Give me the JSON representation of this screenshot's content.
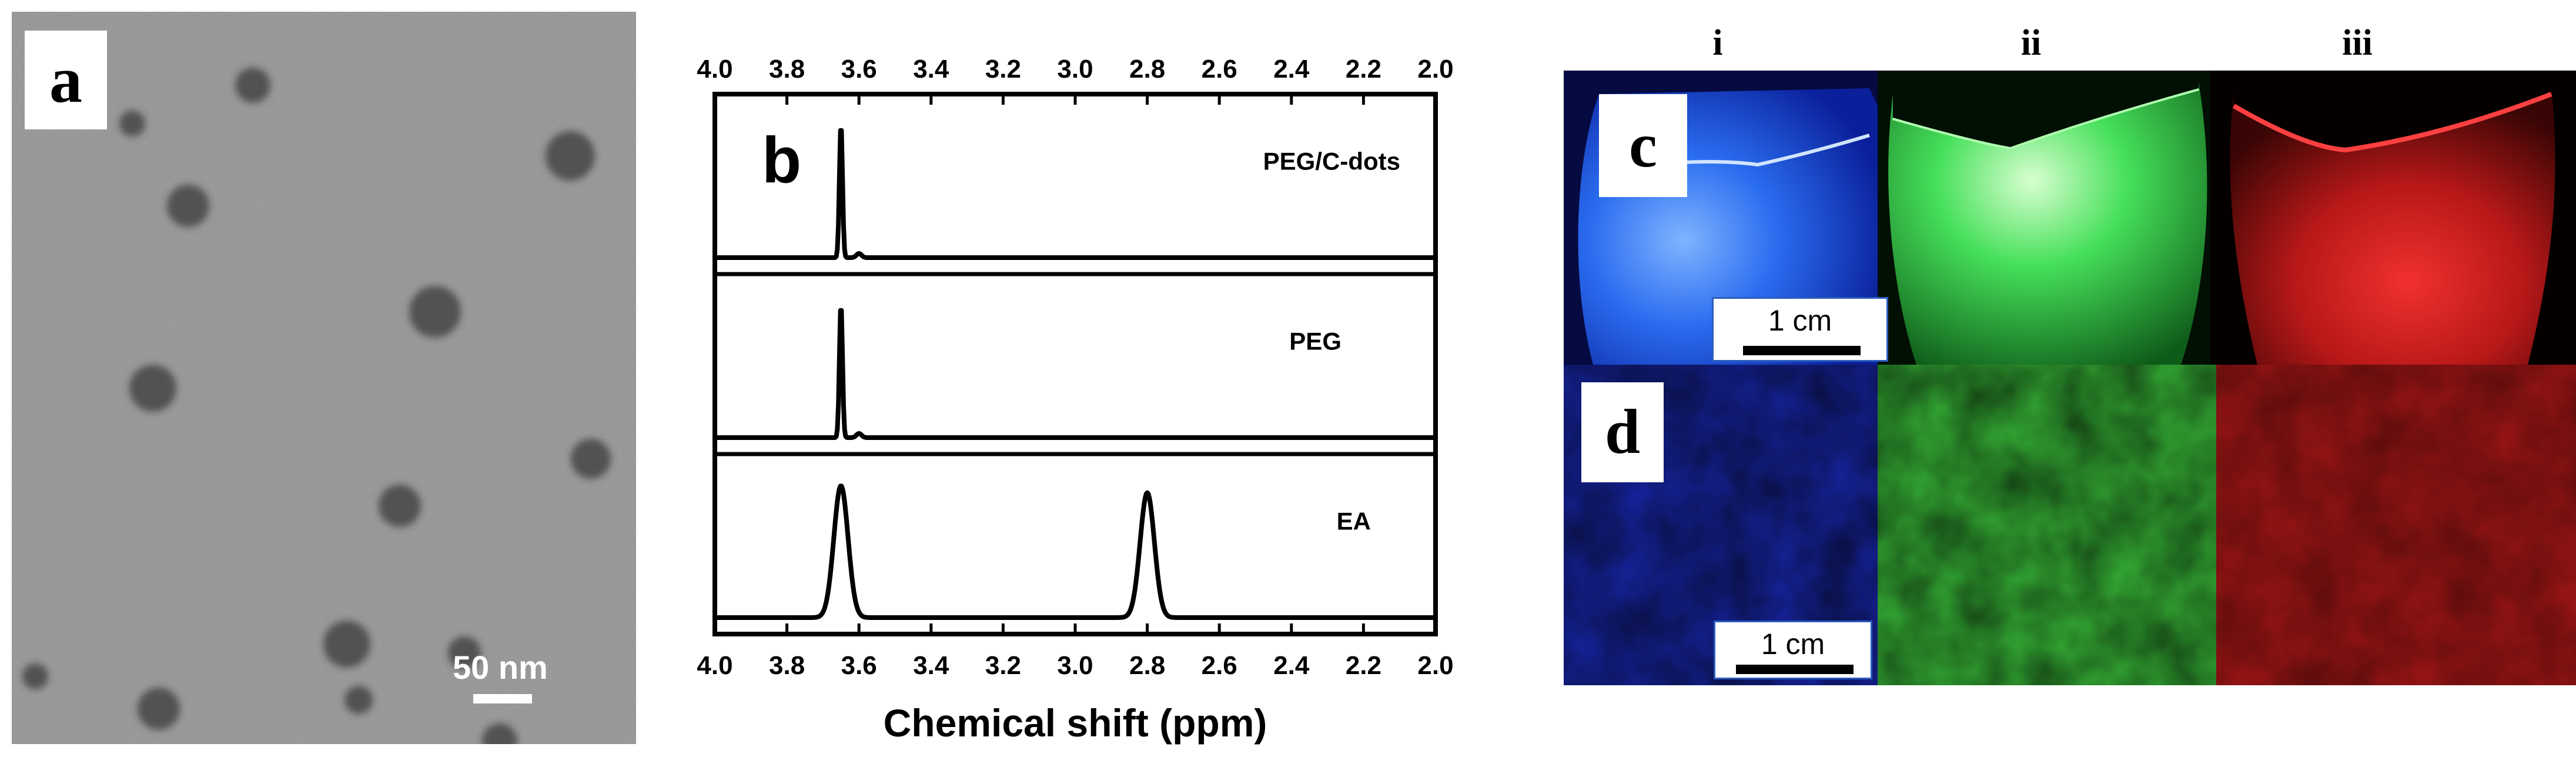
{
  "panel_a": {
    "label": "a",
    "scale_bar_text": "50 nm"
  },
  "panel_b": {
    "label": "b",
    "x_ticks": [
      "4.0",
      "3.8",
      "3.6",
      "3.4",
      "3.2",
      "3.0",
      "2.8",
      "2.6",
      "2.4",
      "2.2",
      "2.0"
    ],
    "xlabel": "Chemical shift (ppm)"
  },
  "chart_data": {
    "type": "line",
    "title": "",
    "xlabel": "Chemical shift (ppm)",
    "ylabel": "",
    "xlim": [
      4.0,
      2.0
    ],
    "x_reversed": true,
    "grid": false,
    "series": [
      {
        "name": "PEG/C-dots",
        "peaks": [
          {
            "ppm": 3.65,
            "relative_height": 0.97
          },
          {
            "ppm": 3.6,
            "relative_height": 0.03
          }
        ]
      },
      {
        "name": "PEG",
        "peaks": [
          {
            "ppm": 3.65,
            "relative_height": 0.97
          },
          {
            "ppm": 3.6,
            "relative_height": 0.03
          }
        ]
      },
      {
        "name": "EA",
        "peaks": [
          {
            "ppm": 3.65,
            "relative_height": 0.95
          },
          {
            "ppm": 2.8,
            "relative_height": 0.9
          }
        ]
      }
    ]
  },
  "panel_cd": {
    "column_headers": [
      "i",
      "ii",
      "iii"
    ],
    "label_c": "c",
    "label_d": "d",
    "scale_c_text": "1 cm",
    "scale_d_text": "1 cm",
    "colors": {
      "blue": "#1a2fd0",
      "green": "#35d048",
      "red": "#d42020"
    }
  }
}
